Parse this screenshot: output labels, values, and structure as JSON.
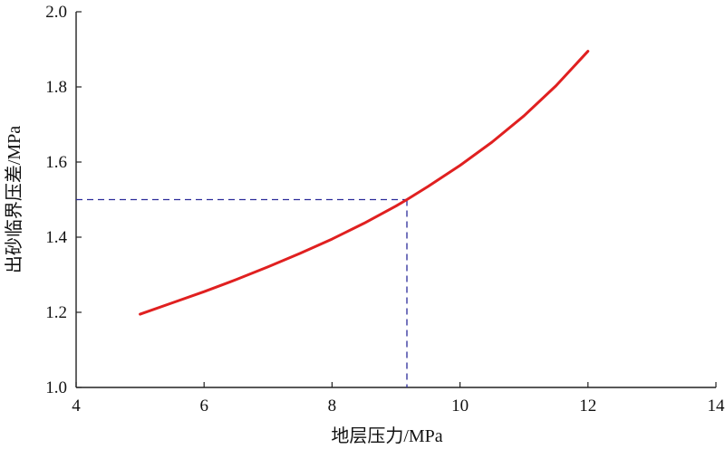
{
  "chart_data": {
    "type": "line",
    "xlabel": "地层压力/MPa",
    "ylabel": "出砂临界压差/MPa",
    "xlim": [
      4,
      14
    ],
    "ylim": [
      1.0,
      2.0
    ],
    "x_ticks": [
      "4",
      "6",
      "8",
      "10",
      "12",
      "14"
    ],
    "y_ticks": [
      "1.0",
      "1.2",
      "1.4",
      "1.6",
      "1.8",
      "2.0"
    ],
    "grid": false,
    "series": [
      {
        "color": "#e02020",
        "x": [
          5.0,
          5.5,
          6.0,
          6.5,
          7.0,
          7.5,
          8.0,
          8.5,
          9.0,
          9.17,
          9.5,
          10.0,
          10.5,
          11.0,
          11.5,
          12.0
        ],
        "y": [
          1.195,
          1.225,
          1.255,
          1.287,
          1.321,
          1.357,
          1.395,
          1.437,
          1.483,
          1.5,
          1.535,
          1.591,
          1.653,
          1.723,
          1.803,
          1.895
        ]
      }
    ],
    "reference_point": {
      "x": 9.17,
      "y": 1.5,
      "color": "#2b2b9a"
    }
  }
}
